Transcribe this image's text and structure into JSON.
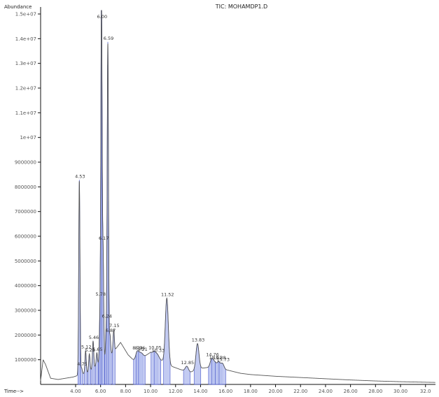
{
  "chart_data": {
    "type": "line",
    "title": "TIC: MOHAMDP1.D",
    "ylabel": "Abundance",
    "xlabel": "Time-->",
    "xlim": [
      1.2,
      32.8
    ],
    "ylim": [
      0,
      15000000
    ],
    "yticks": [
      {
        "value": 15000000,
        "label": "1.5e+07"
      },
      {
        "value": 14000000,
        "label": "1.4e+07"
      },
      {
        "value": 13000000,
        "label": "1.3e+07"
      },
      {
        "value": 12000000,
        "label": "1.2e+07"
      },
      {
        "value": 11000000,
        "label": "1.1e+07"
      },
      {
        "value": 10000000,
        "label": "1e+07"
      },
      {
        "value": 9000000,
        "label": "9000000"
      },
      {
        "value": 8000000,
        "label": "8000000"
      },
      {
        "value": 7000000,
        "label": "7000000"
      },
      {
        "value": 6000000,
        "label": "6000000"
      },
      {
        "value": 5000000,
        "label": "5000000"
      },
      {
        "value": 4000000,
        "label": "4000000"
      },
      {
        "value": 3000000,
        "label": "3000000"
      },
      {
        "value": 2000000,
        "label": "2000000"
      },
      {
        "value": 1000000,
        "label": "1000000"
      }
    ],
    "xticks": [
      "4.00",
      "6.00",
      "8.00",
      "10.00",
      "12.00",
      "14.00",
      "16.00",
      "18.00",
      "20.00",
      "22.00",
      "24.00",
      "26.00",
      "28.00",
      "30.00",
      "32.0"
    ],
    "xtick_values": [
      4,
      6,
      8,
      10,
      12,
      14,
      16,
      18,
      20,
      22,
      24,
      26,
      28,
      30,
      32
    ],
    "baseline": [
      [
        1.2,
        150000
      ],
      [
        1.4,
        1000000
      ],
      [
        1.6,
        800000
      ],
      [
        2.0,
        250000
      ],
      [
        2.6,
        200000
      ],
      [
        3.2,
        250000
      ],
      [
        3.8,
        300000
      ],
      [
        5.0,
        500000
      ],
      [
        6.0,
        900000
      ],
      [
        7.0,
        1300000
      ],
      [
        7.6,
        1700000
      ],
      [
        8.2,
        1200000
      ],
      [
        8.8,
        900000
      ],
      [
        9.4,
        1100000
      ],
      [
        10.0,
        1300000
      ],
      [
        10.8,
        1000000
      ],
      [
        11.6,
        750000
      ],
      [
        12.4,
        600000
      ],
      [
        13.2,
        500000
      ],
      [
        14.0,
        650000
      ],
      [
        14.8,
        700000
      ],
      [
        15.6,
        650000
      ],
      [
        16.4,
        550000
      ],
      [
        17.2,
        450000
      ],
      [
        18.0,
        400000
      ],
      [
        20.0,
        330000
      ],
      [
        22.0,
        280000
      ],
      [
        24.0,
        230000
      ],
      [
        26.0,
        180000
      ],
      [
        28.0,
        140000
      ],
      [
        30.0,
        110000
      ],
      [
        32.8,
        80000
      ]
    ],
    "peaks": [
      {
        "rt": 4.3,
        "height": 7900000,
        "label": "4.53"
      },
      {
        "rt": 4.48,
        "height": 250000,
        "label": "4.75"
      },
      {
        "rt": 4.8,
        "height": 900000,
        "label": "5.12"
      },
      {
        "rt": 5.1,
        "height": 700000,
        "label": "5.25"
      },
      {
        "rt": 5.4,
        "height": 1100000,
        "label": "5.46"
      },
      {
        "rt": 5.7,
        "height": 500000,
        "label": "5.65"
      },
      {
        "rt": 5.95,
        "height": 1800000,
        "label": "5.78"
      },
      {
        "rt": 6.07,
        "height": 14700000,
        "label": "6.00"
      },
      {
        "rt": 6.2,
        "height": 4300000,
        "label": "6.17"
      },
      {
        "rt": 6.45,
        "height": 1100000,
        "label": "6.24"
      },
      {
        "rt": 6.58,
        "height": 12700000,
        "label": "6.59"
      },
      {
        "rt": 6.75,
        "height": 800000,
        "label": "6.87"
      },
      {
        "rt": 7.05,
        "height": 900000,
        "label": "7.15"
      },
      {
        "rt": 8.9,
        "height": 350000,
        "label": "8.73"
      },
      {
        "rt": 9.1,
        "height": 200000,
        "label": "8.96"
      },
      {
        "rt": 9.3,
        "height": 150000,
        "label": "9.21"
      },
      {
        "rt": 10.3,
        "height": 150000,
        "label": "10.05"
      },
      {
        "rt": 10.55,
        "height": 120000,
        "label": "10.33"
      },
      {
        "rt": 11.3,
        "height": 2650000,
        "label": "11.52"
      },
      {
        "rt": 12.9,
        "height": 200000,
        "label": "12.85"
      },
      {
        "rt": 13.75,
        "height": 1050000,
        "label": "13.83"
      },
      {
        "rt": 14.9,
        "height": 350000,
        "label": "14.76"
      },
      {
        "rt": 15.15,
        "height": 200000,
        "label": "15.01"
      },
      {
        "rt": 15.45,
        "height": 250000,
        "label": "15.38"
      },
      {
        "rt": 15.75,
        "height": 220000,
        "label": "15.73"
      }
    ],
    "grid": false,
    "legend": "none"
  }
}
